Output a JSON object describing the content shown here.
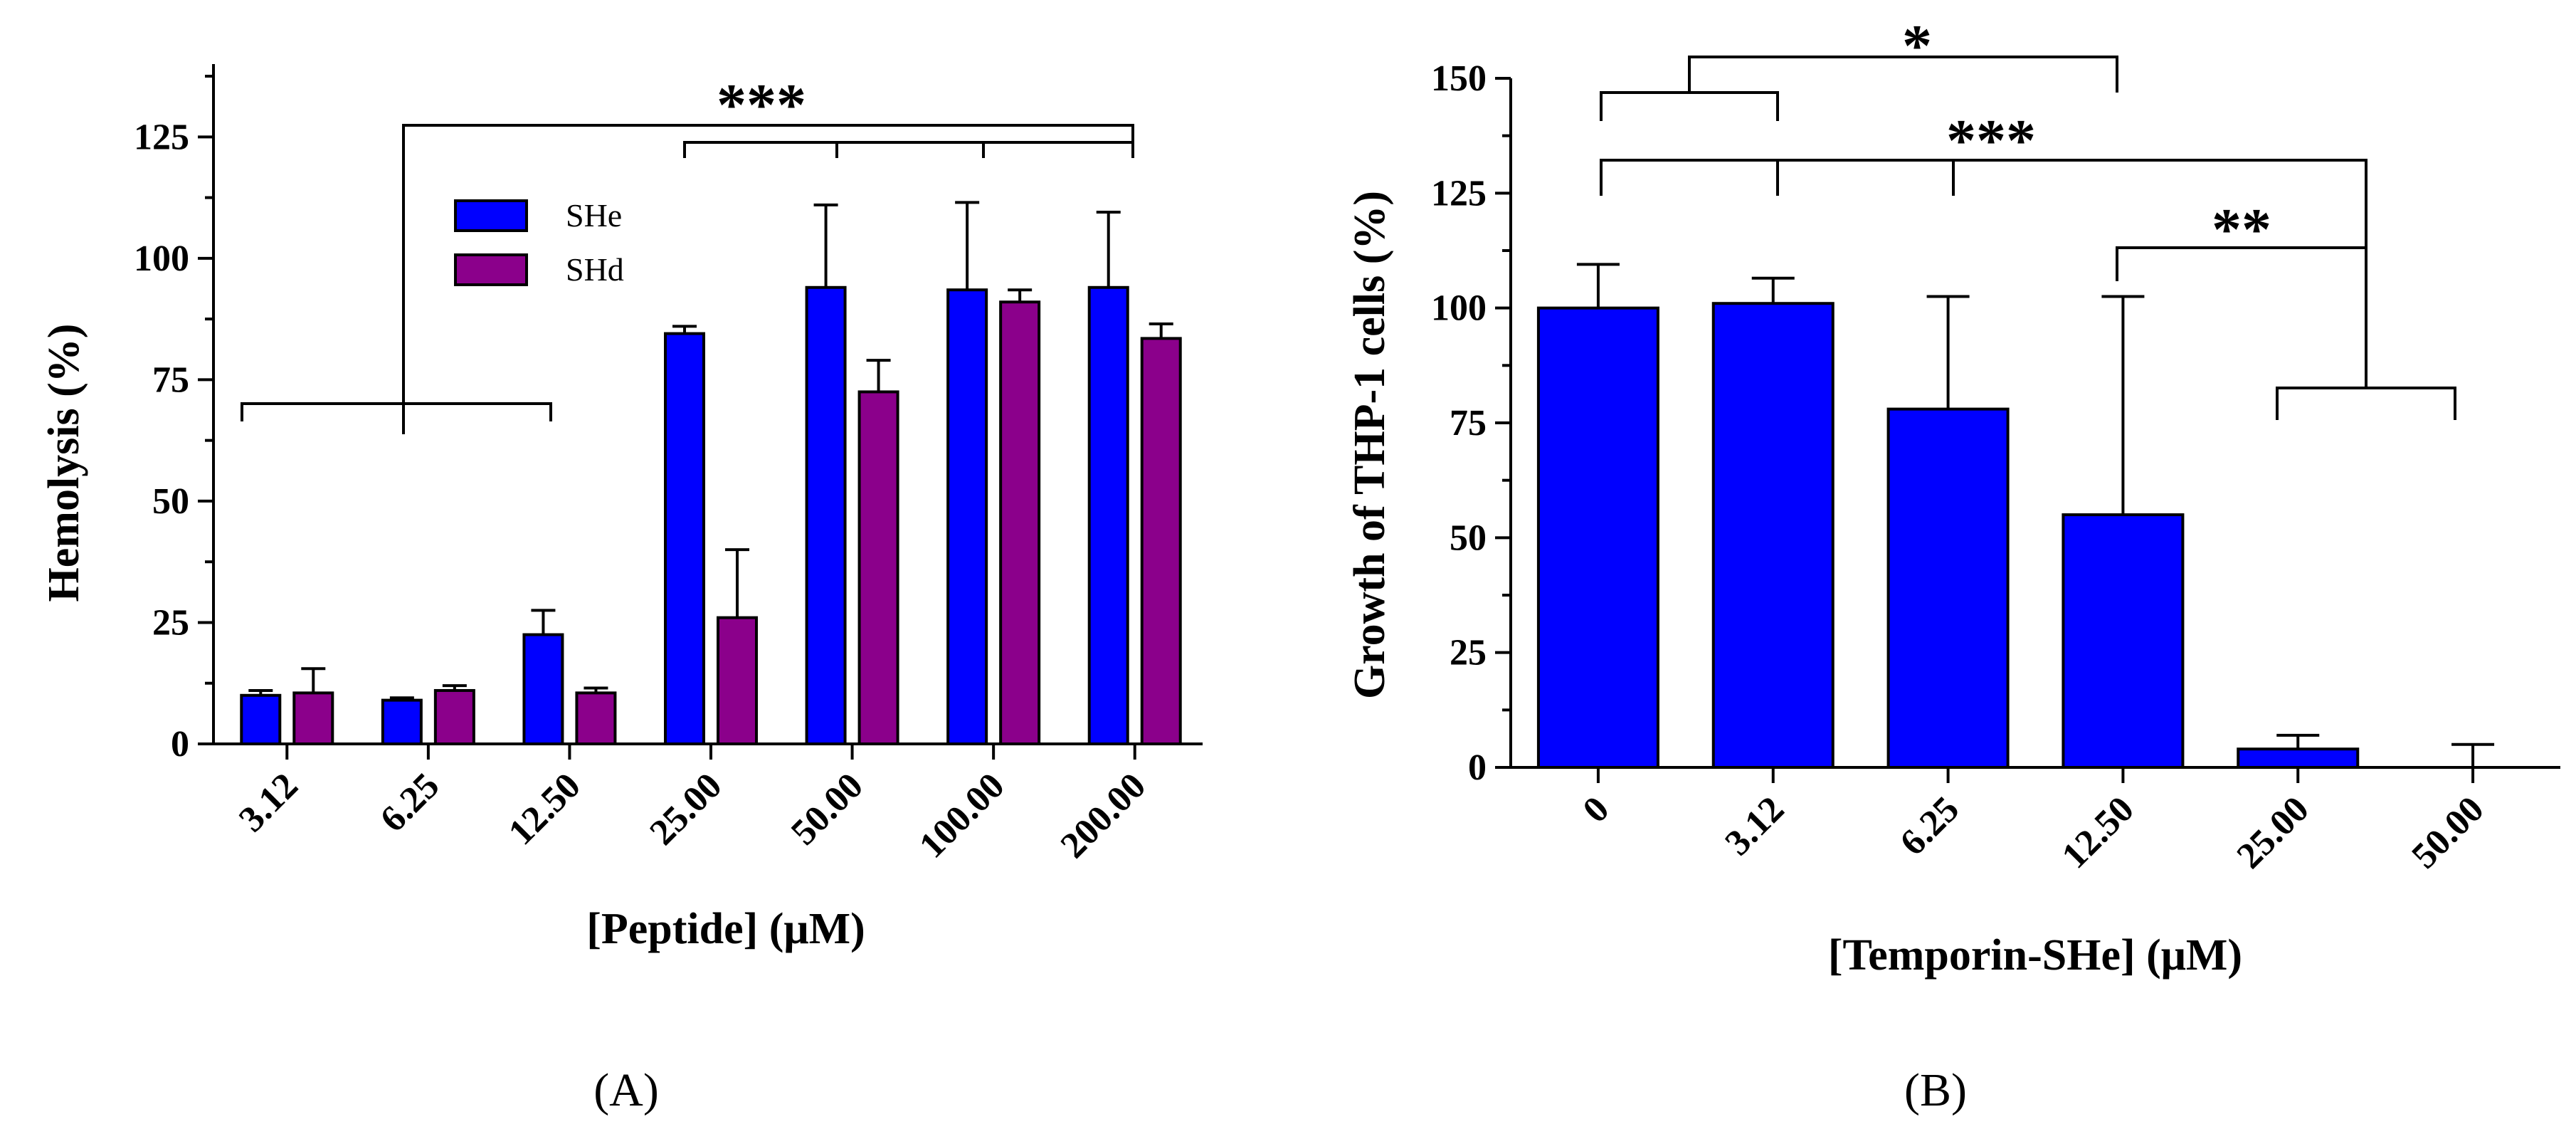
{
  "colors": {
    "SHe": "#0000ff",
    "SHd": "#8b008b",
    "axis": "#000000"
  },
  "chart_data": [
    {
      "type": "bar",
      "panel_label": "(A)",
      "xlabel": "[Peptide] (μM)",
      "ylabel": "Hemolysis (%)",
      "ylim": [
        0,
        140
      ],
      "yticks": [
        "0",
        "25",
        "50",
        "75",
        "100",
        "125"
      ],
      "categories": [
        "3.12",
        "6.25",
        "12.50",
        "25.00",
        "50.00",
        "100.00",
        "200.00"
      ],
      "series": [
        {
          "name": "SHe",
          "values": [
            10,
            9,
            22.5,
            84.5,
            94,
            93.5,
            94
          ],
          "errors": [
            1,
            0.5,
            5,
            1.5,
            17,
            18,
            15.5
          ]
        },
        {
          "name": "SHd",
          "values": [
            10.5,
            11,
            10.5,
            26,
            72.5,
            91,
            83.5
          ],
          "errors": [
            5,
            1,
            1,
            14,
            6.5,
            2.5,
            3
          ]
        }
      ],
      "annotations": [
        {
          "text": "***",
          "comparison": "3.12–12.50 vs 25.00–200.00"
        }
      ]
    },
    {
      "type": "bar",
      "panel_label": "(B)",
      "xlabel": "[Temporin-SHe] (μM)",
      "ylabel": "Growth of THP-1 cells (%)",
      "ylim": [
        0,
        150
      ],
      "yticks": [
        "0",
        "25",
        "50",
        "75",
        "100",
        "125",
        "150"
      ],
      "categories": [
        "0",
        "3.12",
        "6.25",
        "12.50",
        "25.00",
        "50.00"
      ],
      "series": [
        {
          "name": "Temporin-SHe",
          "values": [
            100,
            101,
            78,
            55,
            4,
            0
          ],
          "errors": [
            9.5,
            5.5,
            24.5,
            47.5,
            3,
            5
          ]
        }
      ],
      "annotations": [
        {
          "text": "*",
          "comparison": "0–3.12 vs 12.50"
        },
        {
          "text": "***",
          "comparison": "0–12.50 vs 25.00–50.00"
        },
        {
          "text": "**",
          "comparison": "12.50 vs 25.00–50.00"
        }
      ]
    }
  ]
}
